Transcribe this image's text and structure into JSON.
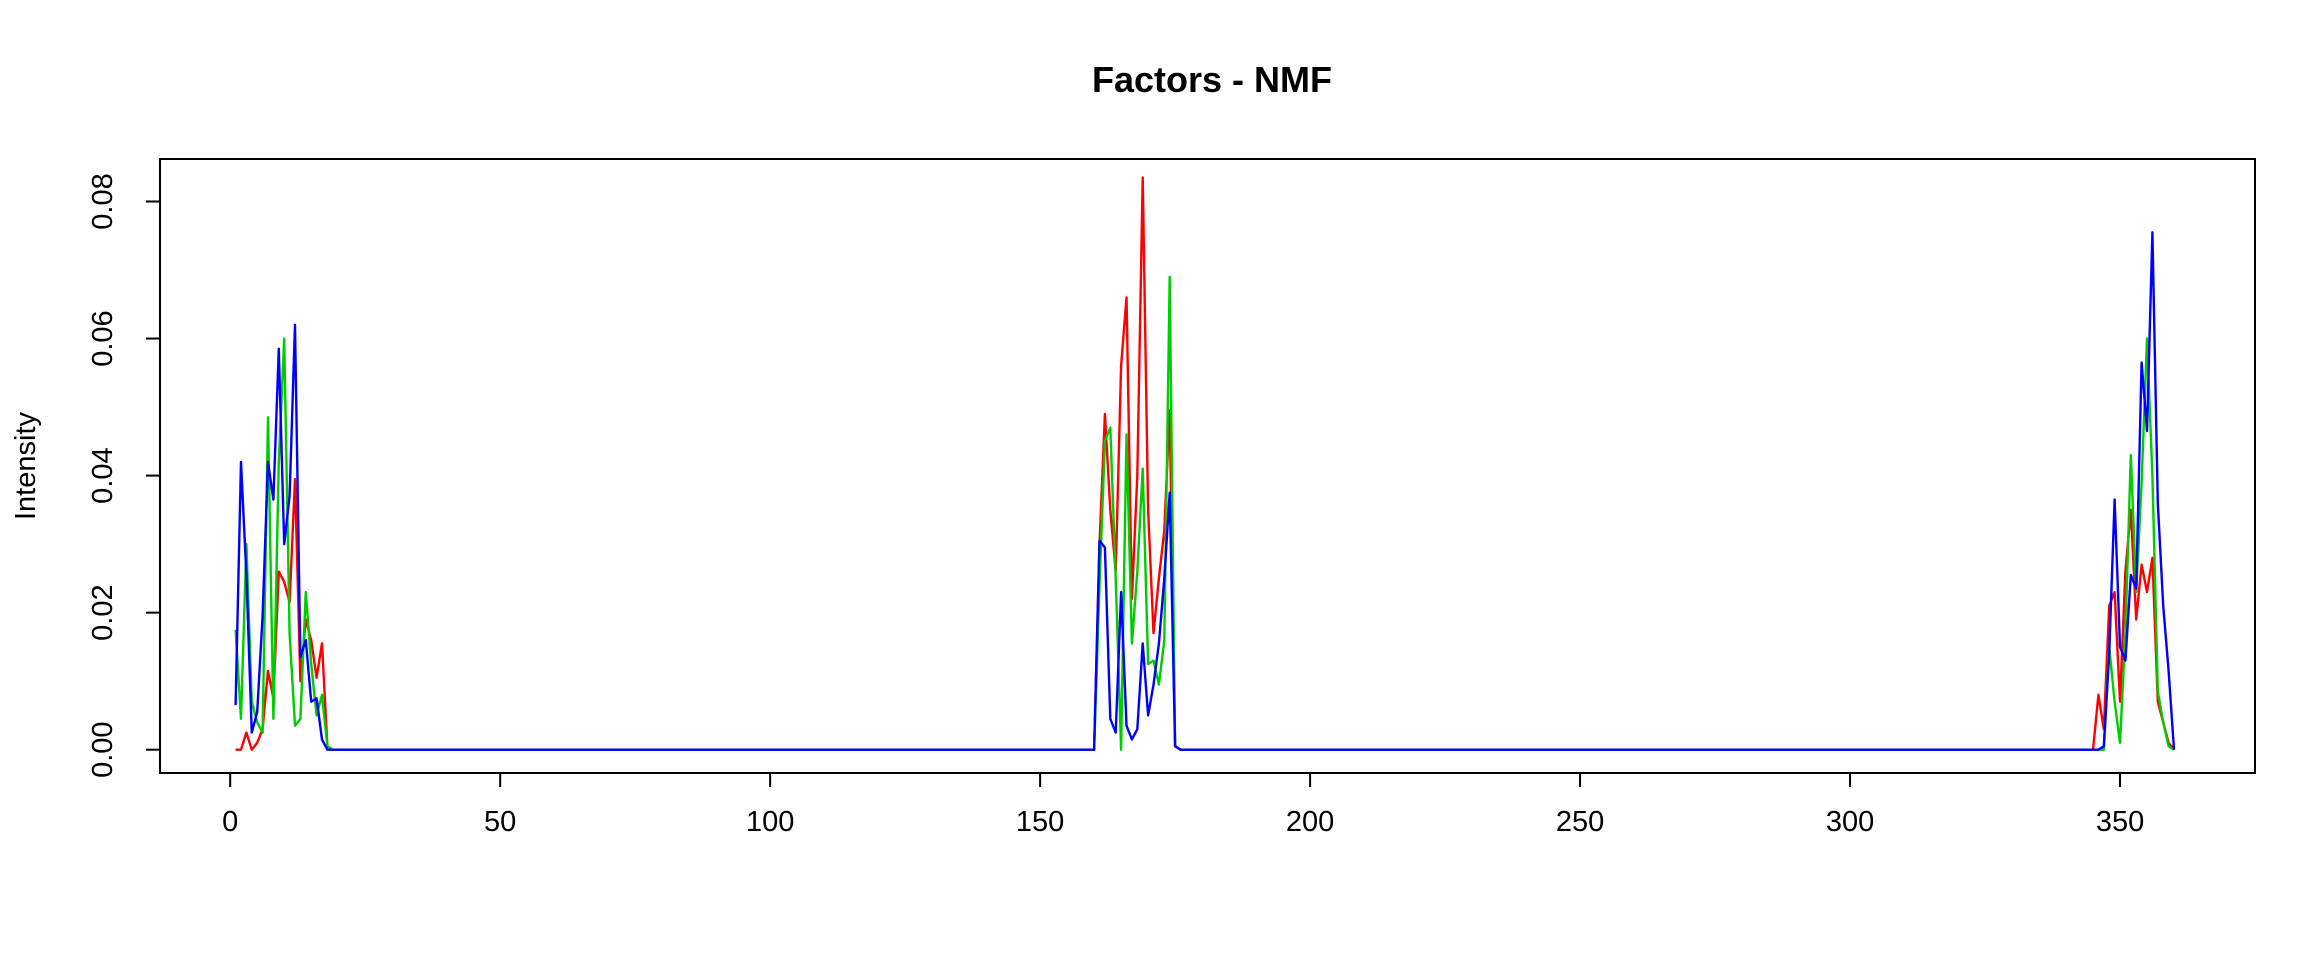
{
  "chart_data": {
    "type": "line",
    "title": "Factors - NMF",
    "xlabel": "",
    "ylabel": "Intensity",
    "xlim": [
      -13,
      375
    ],
    "ylim": [
      -0.0034,
      0.0862
    ],
    "x_ticks": [
      0,
      50,
      100,
      150,
      200,
      250,
      300,
      350
    ],
    "y_ticks": [
      0.0,
      0.02,
      0.04,
      0.06,
      0.08
    ],
    "x_tick_labels": [
      "0",
      "50",
      "100",
      "150",
      "200",
      "250",
      "300",
      "350"
    ],
    "y_tick_labels": [
      "0.00",
      "0.02",
      "0.04",
      "0.06",
      "0.08"
    ],
    "grid": false,
    "legend": "none",
    "series_order": [
      "red",
      "green",
      "blue"
    ],
    "series": [
      {
        "color": "#ff0000",
        "points": [
          [
            1,
            0.0
          ],
          [
            2,
            0.0
          ],
          [
            3,
            0.0025
          ],
          [
            4,
            0.0
          ],
          [
            5,
            0.001
          ],
          [
            6,
            0.003
          ],
          [
            7,
            0.0115
          ],
          [
            8,
            0.0075
          ],
          [
            9,
            0.026
          ],
          [
            10,
            0.0245
          ],
          [
            11,
            0.0215
          ],
          [
            12,
            0.0395
          ],
          [
            13,
            0.01
          ],
          [
            14,
            0.019
          ],
          [
            15,
            0.016
          ],
          [
            16,
            0.0105
          ],
          [
            17,
            0.0155
          ],
          [
            18,
            0.0005
          ],
          [
            19,
            0.0
          ],
          [
            20,
            0.0
          ],
          [
            100,
            0.0
          ],
          [
            159,
            0.0
          ],
          [
            160,
            0.0
          ],
          [
            161,
            0.03
          ],
          [
            162,
            0.049
          ],
          [
            163,
            0.035
          ],
          [
            164,
            0.026
          ],
          [
            165,
            0.056
          ],
          [
            166,
            0.066
          ],
          [
            167,
            0.022
          ],
          [
            168,
            0.04
          ],
          [
            169,
            0.0835
          ],
          [
            170,
            0.035
          ],
          [
            171,
            0.017
          ],
          [
            172,
            0.025
          ],
          [
            173,
            0.032
          ],
          [
            174,
            0.0495
          ],
          [
            175,
            0.0005
          ],
          [
            176,
            0.0
          ],
          [
            177,
            0.0
          ],
          [
            300,
            0.0
          ],
          [
            345,
            0.0
          ],
          [
            346,
            0.008
          ],
          [
            347,
            0.003
          ],
          [
            348,
            0.021
          ],
          [
            349,
            0.023
          ],
          [
            350,
            0.007
          ],
          [
            351,
            0.026
          ],
          [
            352,
            0.035
          ],
          [
            353,
            0.019
          ],
          [
            354,
            0.027
          ],
          [
            355,
            0.023
          ],
          [
            356,
            0.028
          ],
          [
            357,
            0.007
          ],
          [
            358,
            0.004
          ],
          [
            359,
            0.001
          ],
          [
            360,
            0.0
          ]
        ]
      },
      {
        "color": "#00cd00",
        "points": [
          [
            1,
            0.0175
          ],
          [
            2,
            0.0045
          ],
          [
            3,
            0.03
          ],
          [
            4,
            0.007
          ],
          [
            5,
            0.004
          ],
          [
            6,
            0.0025
          ],
          [
            7,
            0.0485
          ],
          [
            8,
            0.0045
          ],
          [
            9,
            0.042
          ],
          [
            10,
            0.06
          ],
          [
            11,
            0.017
          ],
          [
            12,
            0.0035
          ],
          [
            13,
            0.0045
          ],
          [
            14,
            0.023
          ],
          [
            15,
            0.0125
          ],
          [
            16,
            0.005
          ],
          [
            17,
            0.008
          ],
          [
            18,
            0.0005
          ],
          [
            19,
            0.0
          ],
          [
            20,
            0.0
          ],
          [
            100,
            0.0
          ],
          [
            159,
            0.0
          ],
          [
            160,
            0.0
          ],
          [
            161,
            0.024
          ],
          [
            162,
            0.045
          ],
          [
            163,
            0.047
          ],
          [
            164,
            0.025
          ],
          [
            165,
            0.0
          ],
          [
            166,
            0.046
          ],
          [
            167,
            0.0155
          ],
          [
            168,
            0.026
          ],
          [
            169,
            0.041
          ],
          [
            170,
            0.0125
          ],
          [
            171,
            0.013
          ],
          [
            172,
            0.0095
          ],
          [
            173,
            0.016
          ],
          [
            174,
            0.069
          ],
          [
            175,
            0.0005
          ],
          [
            176,
            0.0
          ],
          [
            177,
            0.0
          ],
          [
            300,
            0.0
          ],
          [
            346,
            0.0
          ],
          [
            347,
            0.0
          ],
          [
            348,
            0.015
          ],
          [
            349,
            0.007
          ],
          [
            350,
            0.001
          ],
          [
            351,
            0.017
          ],
          [
            352,
            0.043
          ],
          [
            353,
            0.023
          ],
          [
            354,
            0.039
          ],
          [
            355,
            0.06
          ],
          [
            356,
            0.04
          ],
          [
            357,
            0.0085
          ],
          [
            358,
            0.004
          ],
          [
            359,
            0.0005
          ],
          [
            360,
            0.0
          ]
        ]
      },
      {
        "color": "#0000ff",
        "points": [
          [
            1,
            0.0065
          ],
          [
            2,
            0.042
          ],
          [
            3,
            0.0255
          ],
          [
            4,
            0.0025
          ],
          [
            5,
            0.0055
          ],
          [
            6,
            0.0195
          ],
          [
            7,
            0.042
          ],
          [
            8,
            0.0365
          ],
          [
            9,
            0.0585
          ],
          [
            10,
            0.03
          ],
          [
            11,
            0.037
          ],
          [
            12,
            0.062
          ],
          [
            13,
            0.0135
          ],
          [
            14,
            0.016
          ],
          [
            15,
            0.007
          ],
          [
            16,
            0.0075
          ],
          [
            17,
            0.0015
          ],
          [
            18,
            0.0
          ],
          [
            19,
            0.0
          ],
          [
            20,
            0.0
          ],
          [
            100,
            0.0
          ],
          [
            159,
            0.0
          ],
          [
            160,
            0.0
          ],
          [
            161,
            0.0305
          ],
          [
            162,
            0.0295
          ],
          [
            163,
            0.0045
          ],
          [
            164,
            0.0025
          ],
          [
            165,
            0.023
          ],
          [
            166,
            0.0035
          ],
          [
            167,
            0.0015
          ],
          [
            168,
            0.003
          ],
          [
            169,
            0.0155
          ],
          [
            170,
            0.005
          ],
          [
            171,
            0.0095
          ],
          [
            172,
            0.0155
          ],
          [
            173,
            0.025
          ],
          [
            174,
            0.0375
          ],
          [
            175,
            0.0005
          ],
          [
            176,
            0.0
          ],
          [
            177,
            0.0
          ],
          [
            300,
            0.0
          ],
          [
            346,
            0.0
          ],
          [
            347,
            0.0005
          ],
          [
            348,
            0.014
          ],
          [
            349,
            0.0365
          ],
          [
            350,
            0.015
          ],
          [
            351,
            0.013
          ],
          [
            352,
            0.0255
          ],
          [
            353,
            0.0235
          ],
          [
            354,
            0.0565
          ],
          [
            355,
            0.0465
          ],
          [
            356,
            0.0755
          ],
          [
            357,
            0.036
          ],
          [
            358,
            0.021
          ],
          [
            359,
            0.0115
          ],
          [
            360,
            0.0
          ]
        ]
      }
    ]
  }
}
